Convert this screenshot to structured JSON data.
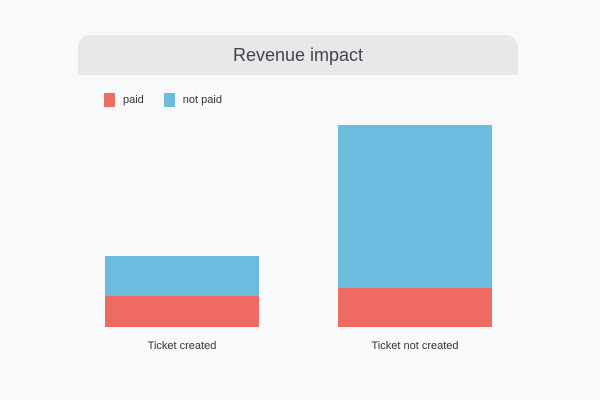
{
  "chart_data": {
    "type": "bar",
    "stacked": true,
    "title": "Revenue impact",
    "categories": [
      "Ticket created",
      "Ticket not created"
    ],
    "series": [
      {
        "name": "paid",
        "color": "#ed6b62",
        "values": [
          31,
          39
        ]
      },
      {
        "name": "not paid",
        "color": "#6bbcdd",
        "values": [
          40,
          163
        ]
      }
    ],
    "ylim": [
      0,
      202
    ],
    "grid": false,
    "legend_position": "top-left"
  }
}
